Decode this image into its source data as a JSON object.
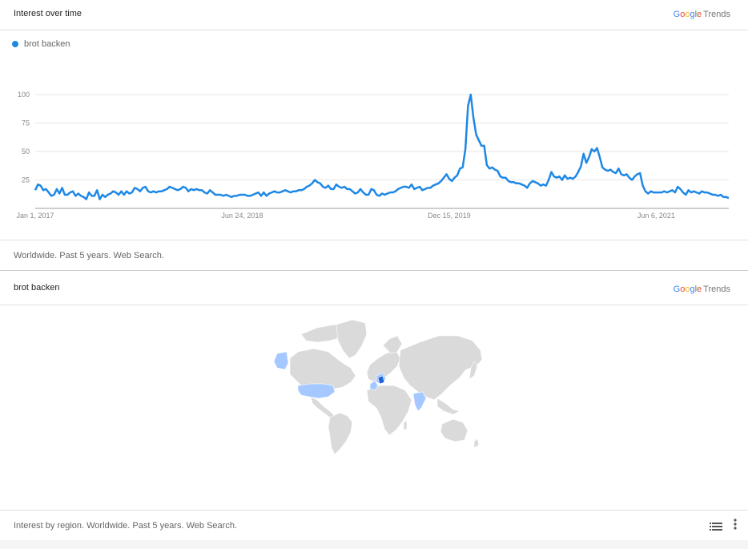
{
  "interest_over_time": {
    "title": "Interest over time",
    "logo": {
      "google": "Google",
      "trends": "Trends"
    },
    "legend_label": "brot backen",
    "footer": "Worldwide. Past 5 years. Web Search."
  },
  "region_card": {
    "title": "brot backen",
    "logo": {
      "google": "Google",
      "trends": "Trends"
    },
    "footer": "Interest by region. Worldwide. Past 5 years. Web Search.",
    "list_icon": "list-icon",
    "more_icon": "more-vert-icon"
  },
  "colors": {
    "series": "#1e88e5",
    "highlight_region": "#a4c8ff",
    "top_region": "#1e62d8",
    "land": "#dadada"
  },
  "chart_data": {
    "type": "line",
    "title": "Interest over time",
    "xlabel": "",
    "ylabel": "",
    "ylim": [
      0,
      100
    ],
    "yticks": [
      25,
      50,
      75,
      100
    ],
    "xtick_labels": [
      "Jan 1, 2017",
      "Jun 24, 2018",
      "Dec 15, 2019",
      "Jun 6, 2021"
    ],
    "grid": true,
    "legend_position": "top-left",
    "series": [
      {
        "name": "brot backen",
        "x_start": "2017-01-01",
        "x_interval": "weekly",
        "values": [
          16,
          21,
          20,
          16,
          17,
          14,
          11,
          12,
          17,
          13,
          18,
          12,
          12,
          14,
          15,
          11,
          13,
          11,
          10,
          8,
          14,
          11,
          11,
          16,
          8,
          12,
          10,
          12,
          13,
          15,
          14,
          12,
          15,
          12,
          15,
          13,
          14,
          18,
          17,
          15,
          18,
          19,
          15,
          14,
          15,
          14,
          15,
          15,
          16,
          17,
          19,
          18,
          17,
          16,
          17,
          19,
          18,
          15,
          17,
          16,
          17,
          16,
          16,
          14,
          13,
          16,
          14,
          12,
          12,
          12,
          11,
          12,
          11,
          10,
          11,
          11,
          12,
          12,
          12,
          11,
          11,
          12,
          13,
          14,
          11,
          14,
          11,
          13,
          14,
          15,
          14,
          14,
          15,
          16,
          15,
          14,
          15,
          15,
          16,
          16,
          17,
          19,
          20,
          22,
          25,
          23,
          22,
          19,
          18,
          20,
          17,
          17,
          21,
          19,
          18,
          19,
          17,
          17,
          15,
          13,
          14,
          17,
          14,
          12,
          12,
          17,
          16,
          12,
          11,
          13,
          12,
          13,
          14,
          14,
          15,
          17,
          18,
          19,
          19,
          18,
          21,
          17,
          18,
          19,
          16,
          17,
          18,
          18,
          20,
          21,
          22,
          24,
          27,
          30,
          26,
          24,
          27,
          29,
          35,
          36,
          52,
          90,
          100,
          80,
          65,
          60,
          55,
          55,
          38,
          35,
          36,
          34,
          33,
          28,
          27,
          27,
          24,
          23,
          23,
          22,
          22,
          21,
          20,
          18,
          22,
          24,
          23,
          22,
          20,
          21,
          20,
          25,
          32,
          28,
          27,
          28,
          25,
          29,
          26,
          27,
          26,
          28,
          32,
          37,
          48,
          40,
          45,
          52,
          50,
          53,
          45,
          36,
          34,
          33,
          34,
          32,
          31,
          35,
          30,
          29,
          30,
          27,
          25,
          28,
          30,
          31,
          20,
          15,
          13,
          15,
          14,
          14,
          14,
          14,
          15,
          14,
          15,
          16,
          14,
          19,
          17,
          14,
          12,
          16,
          14,
          15,
          14,
          13,
          15,
          14,
          14,
          13,
          12,
          12,
          11,
          12,
          10,
          10,
          9
        ]
      }
    ]
  }
}
